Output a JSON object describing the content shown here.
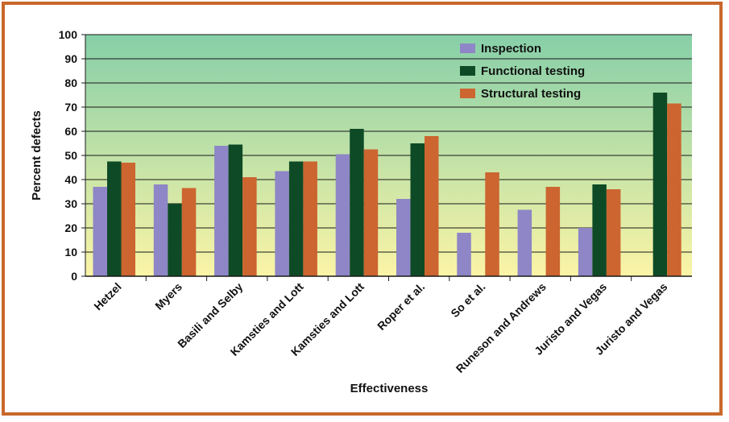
{
  "chart_data": {
    "type": "bar",
    "title": "",
    "xlabel": "Effectiveness",
    "ylabel": "Percent defects",
    "ylim": [
      0,
      100
    ],
    "yticks": [
      0,
      10,
      20,
      30,
      40,
      50,
      60,
      70,
      80,
      90,
      100
    ],
    "grid": true,
    "legend_position": "top-right",
    "categories": [
      "Hetzel",
      "Myers",
      "Basili and Selby",
      "Kamsties and Lott",
      "Kamsties and Lott",
      "Roper et al.",
      "So et al.",
      "Runeson and Andrews",
      "Juristo and Vegas",
      "Juristo and Vegas"
    ],
    "series": [
      {
        "name": "Inspection",
        "color": "#8e86c6",
        "values": [
          37,
          38,
          54,
          43.5,
          50.5,
          32,
          18,
          27.5,
          20,
          null
        ]
      },
      {
        "name": "Functional testing",
        "color": "#0e4a26",
        "values": [
          47.5,
          30,
          54.5,
          47.5,
          61,
          55,
          null,
          null,
          38,
          76
        ]
      },
      {
        "name": "Structural testing",
        "color": "#cc6530",
        "values": [
          47,
          36.5,
          41,
          47.5,
          52.5,
          58,
          43,
          37,
          36,
          71.5
        ]
      }
    ]
  },
  "colors": {
    "frame": "#c8682c",
    "plot_top": "#86cfa8",
    "plot_bottom": "#fbf4a6",
    "grid": "#1a1a1a"
  }
}
